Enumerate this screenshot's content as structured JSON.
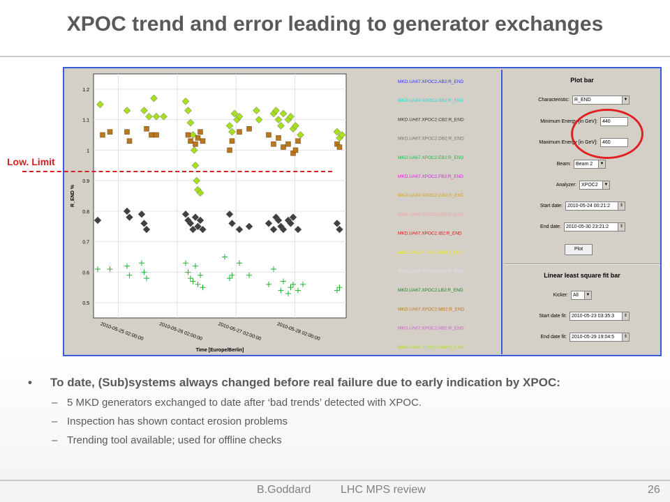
{
  "slide": {
    "title": "XPOC trend and error leading to generator exchanges",
    "low_limit_label": "Low. Limit",
    "bullets": {
      "main": "To date, (Sub)systems always changed before real failure due to early indication by XPOC:",
      "subs": [
        "5 MKD generators exchanged to date after ‘bad trends’ detected with XPOC.",
        "Inspection has shown contact erosion problems",
        "Trending tool available; used for offline checks"
      ]
    },
    "footer": {
      "author": "B.Goddard",
      "review": "LHC MPS review",
      "page": "26"
    }
  },
  "chart_data": {
    "type": "scatter",
    "xlabel": "Time [Europe/Berlin]",
    "ylabel": "R_END %",
    "ylim": [
      0.45,
      1.25
    ],
    "yticks": [
      "0.5",
      "0.6",
      "0.7",
      "0.8",
      "0.9",
      "1",
      "1.1",
      "1.2"
    ],
    "xticks": [
      "2010-05-25 02:00:00",
      "2010-05-26 02:00:00",
      "2010-05-27 02:00:00",
      "2010-05-28 02:00:00"
    ],
    "legend_position": "right",
    "legend": [
      {
        "name": "MKD.UA67.XPOC2.AB2:R_END",
        "color": "#3030ff"
      },
      {
        "name": "MKD.UA67.XPOC2.BB2:R_END",
        "color": "#20d8d8"
      },
      {
        "name": "MKD.UA67.XPOC2.CB2:R_END",
        "color": "#303030"
      },
      {
        "name": "MKD.UA67.XPOC2.DB2:R_END",
        "color": "#707070"
      },
      {
        "name": "MKD.UA67.XPOC2.EB2:R_END",
        "color": "#10c040"
      },
      {
        "name": "MKD.UA67.XPOC2.FB2:R_END",
        "color": "#e020e0"
      },
      {
        "name": "MKD.UA67.XPOC2.GB2:R_END",
        "color": "#d8a020"
      },
      {
        "name": "MKD.UA67.XPOC2.HB2:R_END",
        "color": "#f0a0a0"
      },
      {
        "name": "MKD.UA67.XPOC2.IB2:R_END",
        "color": "#e01010"
      },
      {
        "name": "MKD.UA67.XPOC2.JB2:R_END",
        "color": "#e8e020"
      },
      {
        "name": "MKD.UA67.XPOC2.KB2:R_END",
        "color": "#e0e0f0"
      },
      {
        "name": "MKD.UA67.XPOC2.LB2:R_END",
        "color": "#208020"
      },
      {
        "name": "MKD.UA67.XPOC2.MB2:R_END",
        "color": "#c07820"
      },
      {
        "name": "MKD.UA67.XPOC2.NB2:R_END",
        "color": "#d060d0"
      },
      {
        "name": "MKD.UA67.XPOC2.OB2:R_END",
        "color": "#b0e020"
      }
    ],
    "series": [
      {
        "marker": "diamond",
        "color": "#a8e020",
        "x": [
          0.01,
          0.12,
          0.19,
          0.21,
          0.23,
          0.24,
          0.27,
          0.36,
          0.37,
          0.38,
          0.39,
          0.395,
          0.4,
          0.405,
          0.41,
          0.42,
          0.54,
          0.55,
          0.56,
          0.57,
          0.58,
          0.65,
          0.66,
          0.72,
          0.73,
          0.74,
          0.75,
          0.76,
          0.78,
          0.79,
          0.8,
          0.81,
          0.83,
          0.98,
          0.99,
          1.0
        ],
        "y": [
          1.15,
          1.13,
          1.13,
          1.11,
          1.17,
          1.11,
          1.11,
          1.16,
          1.13,
          1.09,
          1.05,
          1.0,
          0.95,
          0.9,
          0.87,
          0.86,
          1.08,
          1.06,
          1.12,
          1.1,
          1.11,
          1.13,
          1.1,
          1.12,
          1.13,
          1.1,
          1.08,
          1.12,
          1.1,
          1.11,
          1.07,
          1.08,
          1.05,
          1.06,
          1.04,
          1.05
        ]
      },
      {
        "marker": "square",
        "color": "#b87820",
        "x": [
          0.02,
          0.05,
          0.12,
          0.13,
          0.2,
          0.22,
          0.24,
          0.37,
          0.38,
          0.4,
          0.41,
          0.42,
          0.43,
          0.54,
          0.55,
          0.58,
          0.62,
          0.7,
          0.72,
          0.74,
          0.76,
          0.78,
          0.8,
          0.81,
          0.82,
          0.98,
          0.99
        ],
        "y": [
          1.05,
          1.06,
          1.06,
          1.03,
          1.07,
          1.05,
          1.05,
          1.05,
          1.03,
          1.02,
          1.04,
          1.06,
          1.03,
          1.0,
          1.03,
          1.06,
          1.07,
          1.05,
          1.02,
          1.04,
          1.01,
          1.02,
          0.99,
          1.0,
          1.03,
          1.02,
          1.01
        ]
      },
      {
        "marker": "diamond",
        "color": "#404040",
        "x": [
          0.0,
          0.12,
          0.13,
          0.18,
          0.19,
          0.2,
          0.36,
          0.37,
          0.38,
          0.39,
          0.4,
          0.41,
          0.42,
          0.43,
          0.54,
          0.55,
          0.58,
          0.62,
          0.7,
          0.72,
          0.73,
          0.74,
          0.75,
          0.76,
          0.78,
          0.79,
          0.8,
          0.82,
          0.98,
          0.99
        ],
        "y": [
          0.77,
          0.8,
          0.78,
          0.79,
          0.76,
          0.74,
          0.79,
          0.77,
          0.76,
          0.74,
          0.78,
          0.75,
          0.77,
          0.74,
          0.79,
          0.76,
          0.74,
          0.75,
          0.76,
          0.74,
          0.78,
          0.77,
          0.75,
          0.74,
          0.77,
          0.76,
          0.78,
          0.74,
          0.76,
          0.74
        ]
      },
      {
        "marker": "plus",
        "color": "#20b030",
        "x": [
          0.0,
          0.05,
          0.12,
          0.13,
          0.18,
          0.19,
          0.2,
          0.36,
          0.37,
          0.38,
          0.39,
          0.4,
          0.41,
          0.42,
          0.43,
          0.52,
          0.54,
          0.55,
          0.58,
          0.62,
          0.7,
          0.72,
          0.75,
          0.76,
          0.78,
          0.79,
          0.8,
          0.82,
          0.84,
          0.98,
          0.99
        ],
        "y": [
          0.61,
          0.61,
          0.62,
          0.59,
          0.63,
          0.6,
          0.58,
          0.63,
          0.6,
          0.58,
          0.57,
          0.62,
          0.56,
          0.59,
          0.55,
          0.65,
          0.58,
          0.59,
          0.63,
          0.59,
          0.56,
          0.61,
          0.54,
          0.57,
          0.53,
          0.55,
          0.56,
          0.54,
          0.56,
          0.54,
          0.55
        ]
      }
    ]
  },
  "plot_bar": {
    "title": "Plot bar",
    "characteristic_label": "Characteristic:",
    "characteristic_value": "R_END",
    "min_energy_label": "Minimum Energy [in GeV]:",
    "min_energy_value": "440",
    "max_energy_label": "Maximum Energy [in GeV]:",
    "max_energy_value": "460",
    "beam_label": "Beam:",
    "beam_value": "Beam 2",
    "analyzer_label": "Analyzer:",
    "analyzer_value": "XPOC2",
    "start_date_label": "Start date:",
    "start_date_value": "2010-05-24 00:21:2",
    "end_date_label": "End date:",
    "end_date_value": "2010-05-30 23:21:2",
    "plot_button": "Plot"
  },
  "fit_bar": {
    "title": "Linear least square fit bar",
    "kicker_label": "Kicker:",
    "kicker_value": "All",
    "start_fit_label": "Start date fit:",
    "start_fit_value": "2010-05-23 03:35:3",
    "end_fit_label": "End date fit:",
    "end_fit_value": "2010-05-29 19:04:5"
  }
}
